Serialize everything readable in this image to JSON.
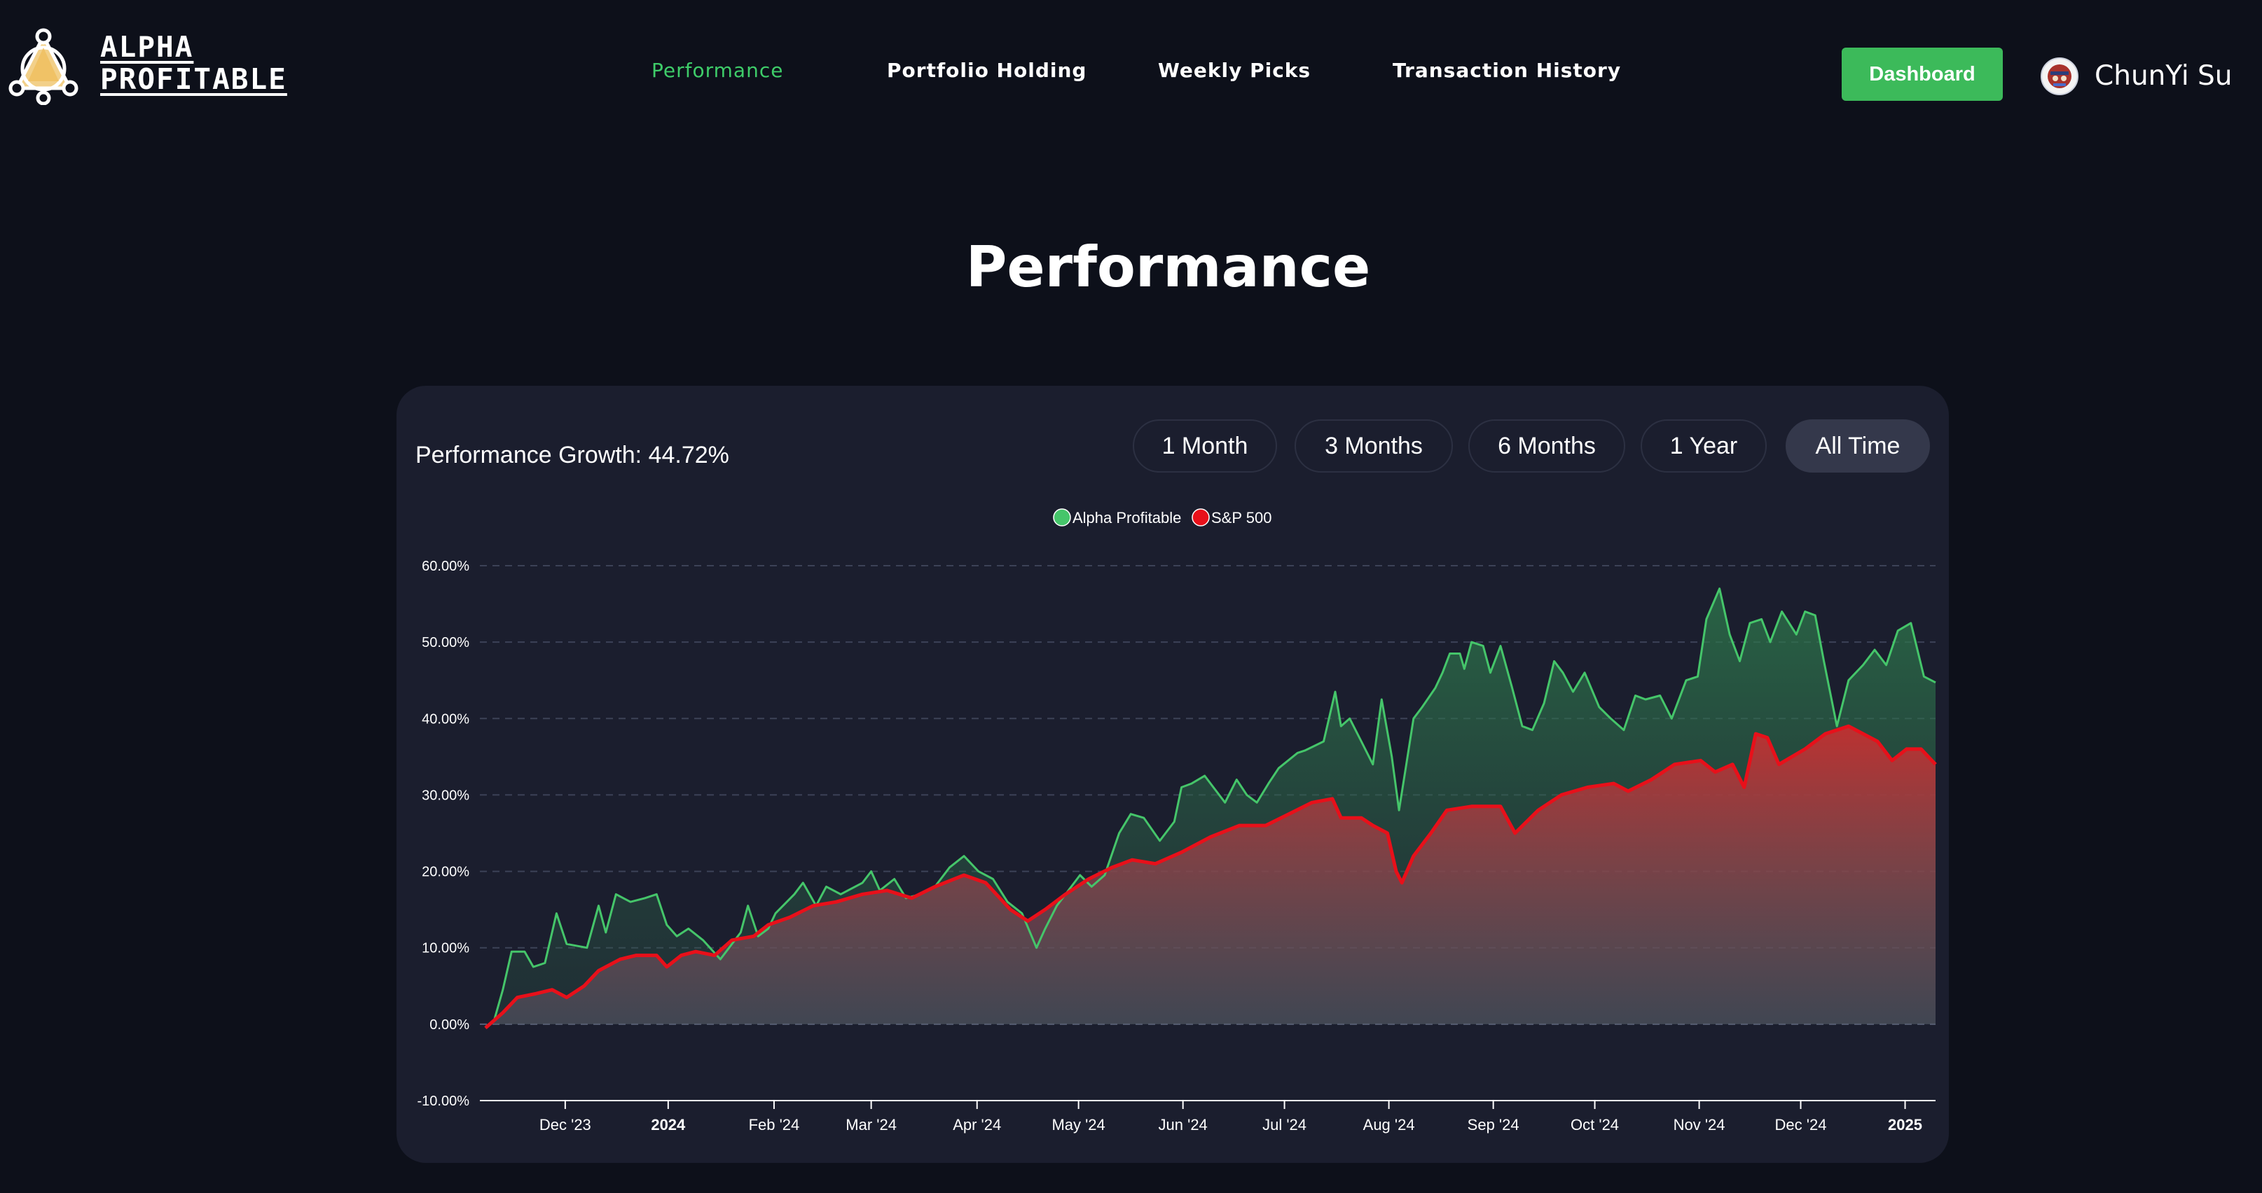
{
  "brand": {
    "line1": "ALPHA",
    "line2": "PROFITABLE"
  },
  "nav": {
    "items": [
      {
        "label": "Performance",
        "active": true
      },
      {
        "label": "Portfolio Holding",
        "active": false
      },
      {
        "label": "Weekly Picks",
        "active": false
      },
      {
        "label": "Transaction History",
        "active": false
      }
    ],
    "dashboard_label": "Dashboard",
    "user_name": "ChunYi Su"
  },
  "page": {
    "title": "Performance"
  },
  "performance": {
    "growth_label": "Performance Growth: 44.72%",
    "ranges": [
      "1 Month",
      "3 Months",
      "6 Months",
      "1 Year",
      "All Time"
    ],
    "active_range": "All Time"
  },
  "colors": {
    "accent": "#3cba5a",
    "alpha": "#45c56a",
    "sp500": "#e8101a",
    "background": "#0d101a",
    "card": "#1b1e2e"
  },
  "chart_data": {
    "type": "area",
    "title": "",
    "xlabel": "",
    "ylabel": "",
    "ylim": [
      -10,
      60
    ],
    "y_ticks": [
      "60.00%",
      "50.00%",
      "40.00%",
      "30.00%",
      "20.00%",
      "10.00%",
      "0.00%",
      "-10.00%"
    ],
    "x_ticks": [
      {
        "label": "Dec '23",
        "t": 0.055,
        "bold": false
      },
      {
        "label": "2024",
        "t": 0.126,
        "bold": true
      },
      {
        "label": "Feb '24",
        "t": 0.199,
        "bold": false
      },
      {
        "label": "Mar '24",
        "t": 0.266,
        "bold": false
      },
      {
        "label": "Apr '24",
        "t": 0.339,
        "bold": false
      },
      {
        "label": "May '24",
        "t": 0.409,
        "bold": false
      },
      {
        "label": "Jun '24",
        "t": 0.481,
        "bold": false
      },
      {
        "label": "Jul '24",
        "t": 0.551,
        "bold": false
      },
      {
        "label": "Aug '24",
        "t": 0.623,
        "bold": false
      },
      {
        "label": "Sep '24",
        "t": 0.695,
        "bold": false
      },
      {
        "label": "Oct '24",
        "t": 0.765,
        "bold": false
      },
      {
        "label": "Nov '24",
        "t": 0.837,
        "bold": false
      },
      {
        "label": "Dec '24",
        "t": 0.907,
        "bold": false
      },
      {
        "label": "2025",
        "t": 0.979,
        "bold": true
      }
    ],
    "legend": [
      "Alpha Profitable",
      "S&P 500"
    ],
    "series": [
      {
        "name": "Alpha Profitable",
        "points": [
          [
            0,
            -0.5
          ],
          [
            0.006,
            0.5
          ],
          [
            0.012,
            4.5
          ],
          [
            0.018,
            9.5
          ],
          [
            0.027,
            9.5
          ],
          [
            0.033,
            7.5
          ],
          [
            0.041,
            8
          ],
          [
            0.049,
            14.5
          ],
          [
            0.056,
            10.5
          ],
          [
            0.07,
            10
          ],
          [
            0.078,
            15.5
          ],
          [
            0.083,
            12
          ],
          [
            0.09,
            17
          ],
          [
            0.1,
            16
          ],
          [
            0.11,
            16.5
          ],
          [
            0.118,
            17
          ],
          [
            0.125,
            13
          ],
          [
            0.132,
            11.5
          ],
          [
            0.14,
            12.5
          ],
          [
            0.15,
            11
          ],
          [
            0.162,
            8.5
          ],
          [
            0.168,
            10
          ],
          [
            0.176,
            12
          ],
          [
            0.181,
            15.5
          ],
          [
            0.188,
            11.5
          ],
          [
            0.195,
            12.5
          ],
          [
            0.2,
            14.5
          ],
          [
            0.213,
            17
          ],
          [
            0.219,
            18.5
          ],
          [
            0.228,
            15.5
          ],
          [
            0.235,
            18
          ],
          [
            0.245,
            17
          ],
          [
            0.26,
            18.5
          ],
          [
            0.266,
            20
          ],
          [
            0.272,
            17.5
          ],
          [
            0.282,
            19
          ],
          [
            0.29,
            16.5
          ],
          [
            0.3,
            17
          ],
          [
            0.31,
            18
          ],
          [
            0.32,
            20.5
          ],
          [
            0.33,
            22
          ],
          [
            0.34,
            20
          ],
          [
            0.35,
            19
          ],
          [
            0.36,
            16
          ],
          [
            0.37,
            14.5
          ],
          [
            0.38,
            10
          ],
          [
            0.386,
            12.5
          ],
          [
            0.394,
            15.5
          ],
          [
            0.402,
            17.5
          ],
          [
            0.41,
            19.5
          ],
          [
            0.418,
            18
          ],
          [
            0.427,
            19.5
          ],
          [
            0.437,
            25
          ],
          [
            0.445,
            27.5
          ],
          [
            0.454,
            27
          ],
          [
            0.465,
            24
          ],
          [
            0.475,
            26.5
          ],
          [
            0.48,
            31
          ],
          [
            0.487,
            31.5
          ],
          [
            0.496,
            32.5
          ],
          [
            0.502,
            31
          ],
          [
            0.51,
            29
          ],
          [
            0.518,
            32
          ],
          [
            0.525,
            30
          ],
          [
            0.532,
            29
          ],
          [
            0.54,
            31.5
          ],
          [
            0.547,
            33.5
          ],
          [
            0.56,
            35.5
          ],
          [
            0.565,
            35.8
          ],
          [
            0.578,
            37
          ],
          [
            0.586,
            43.5
          ],
          [
            0.59,
            39
          ],
          [
            0.596,
            40
          ],
          [
            0.604,
            37
          ],
          [
            0.612,
            34
          ],
          [
            0.618,
            42.5
          ],
          [
            0.625,
            35
          ],
          [
            0.63,
            28
          ],
          [
            0.635,
            34
          ],
          [
            0.64,
            40
          ],
          [
            0.646,
            41.5
          ],
          [
            0.655,
            44
          ],
          [
            0.66,
            46
          ],
          [
            0.665,
            48.5
          ],
          [
            0.672,
            48.5
          ],
          [
            0.675,
            46.5
          ],
          [
            0.68,
            50
          ],
          [
            0.688,
            49.5
          ],
          [
            0.693,
            46
          ],
          [
            0.7,
            49.5
          ],
          [
            0.708,
            44
          ],
          [
            0.715,
            39
          ],
          [
            0.722,
            38.5
          ],
          [
            0.73,
            42
          ],
          [
            0.737,
            47.5
          ],
          [
            0.743,
            46
          ],
          [
            0.75,
            43.5
          ],
          [
            0.758,
            46
          ],
          [
            0.768,
            41.5
          ],
          [
            0.776,
            40
          ],
          [
            0.785,
            38.5
          ],
          [
            0.793,
            43
          ],
          [
            0.8,
            42.5
          ],
          [
            0.81,
            43
          ],
          [
            0.818,
            40
          ],
          [
            0.828,
            45
          ],
          [
            0.836,
            45.5
          ],
          [
            0.842,
            53
          ],
          [
            0.851,
            57
          ],
          [
            0.858,
            51
          ],
          [
            0.865,
            47.5
          ],
          [
            0.872,
            52.5
          ],
          [
            0.88,
            53
          ],
          [
            0.886,
            50
          ],
          [
            0.894,
            54
          ],
          [
            0.904,
            51
          ],
          [
            0.91,
            54
          ],
          [
            0.917,
            53.5
          ],
          [
            0.923,
            47.5
          ],
          [
            0.932,
            39
          ],
          [
            0.94,
            45
          ],
          [
            0.95,
            47
          ],
          [
            0.958,
            49
          ],
          [
            0.966,
            47
          ],
          [
            0.974,
            51.5
          ],
          [
            0.983,
            52.5
          ],
          [
            0.992,
            45.5
          ],
          [
            1,
            44.72
          ]
        ]
      },
      {
        "name": "S&P 500",
        "points": [
          [
            0,
            -0.5
          ],
          [
            0.012,
            1.5
          ],
          [
            0.022,
            3.5
          ],
          [
            0.035,
            4
          ],
          [
            0.046,
            4.5
          ],
          [
            0.056,
            3.5
          ],
          [
            0.068,
            5
          ],
          [
            0.078,
            7
          ],
          [
            0.093,
            8.5
          ],
          [
            0.104,
            9
          ],
          [
            0.118,
            9
          ],
          [
            0.125,
            7.5
          ],
          [
            0.135,
            9
          ],
          [
            0.145,
            9.5
          ],
          [
            0.158,
            9
          ],
          [
            0.17,
            11
          ],
          [
            0.185,
            11.5
          ],
          [
            0.195,
            13
          ],
          [
            0.21,
            14
          ],
          [
            0.226,
            15.5
          ],
          [
            0.242,
            16
          ],
          [
            0.26,
            17
          ],
          [
            0.277,
            17.5
          ],
          [
            0.294,
            16.5
          ],
          [
            0.31,
            18
          ],
          [
            0.33,
            19.5
          ],
          [
            0.345,
            18.5
          ],
          [
            0.362,
            15
          ],
          [
            0.374,
            13.5
          ],
          [
            0.386,
            15
          ],
          [
            0.4,
            17
          ],
          [
            0.416,
            19
          ],
          [
            0.432,
            20.5
          ],
          [
            0.446,
            21.5
          ],
          [
            0.462,
            21
          ],
          [
            0.48,
            22.5
          ],
          [
            0.5,
            24.5
          ],
          [
            0.52,
            26
          ],
          [
            0.538,
            26
          ],
          [
            0.554,
            27.5
          ],
          [
            0.57,
            29
          ],
          [
            0.584,
            29.5
          ],
          [
            0.59,
            27
          ],
          [
            0.604,
            27
          ],
          [
            0.612,
            26
          ],
          [
            0.622,
            25
          ],
          [
            0.628,
            20
          ],
          [
            0.632,
            18.5
          ],
          [
            0.64,
            22
          ],
          [
            0.652,
            25
          ],
          [
            0.663,
            28
          ],
          [
            0.68,
            28.5
          ],
          [
            0.7,
            28.5
          ],
          [
            0.71,
            25
          ],
          [
            0.726,
            28
          ],
          [
            0.742,
            30
          ],
          [
            0.76,
            31
          ],
          [
            0.778,
            31.5
          ],
          [
            0.788,
            30.5
          ],
          [
            0.804,
            32
          ],
          [
            0.82,
            34
          ],
          [
            0.838,
            34.5
          ],
          [
            0.848,
            33
          ],
          [
            0.86,
            34
          ],
          [
            0.868,
            31
          ],
          [
            0.876,
            38
          ],
          [
            0.884,
            37.5
          ],
          [
            0.892,
            34
          ],
          [
            0.91,
            36
          ],
          [
            0.924,
            38
          ],
          [
            0.94,
            39
          ],
          [
            0.95,
            38
          ],
          [
            0.96,
            37
          ],
          [
            0.97,
            34.5
          ],
          [
            0.98,
            36
          ],
          [
            0.99,
            36
          ],
          [
            1,
            34
          ]
        ]
      }
    ]
  }
}
